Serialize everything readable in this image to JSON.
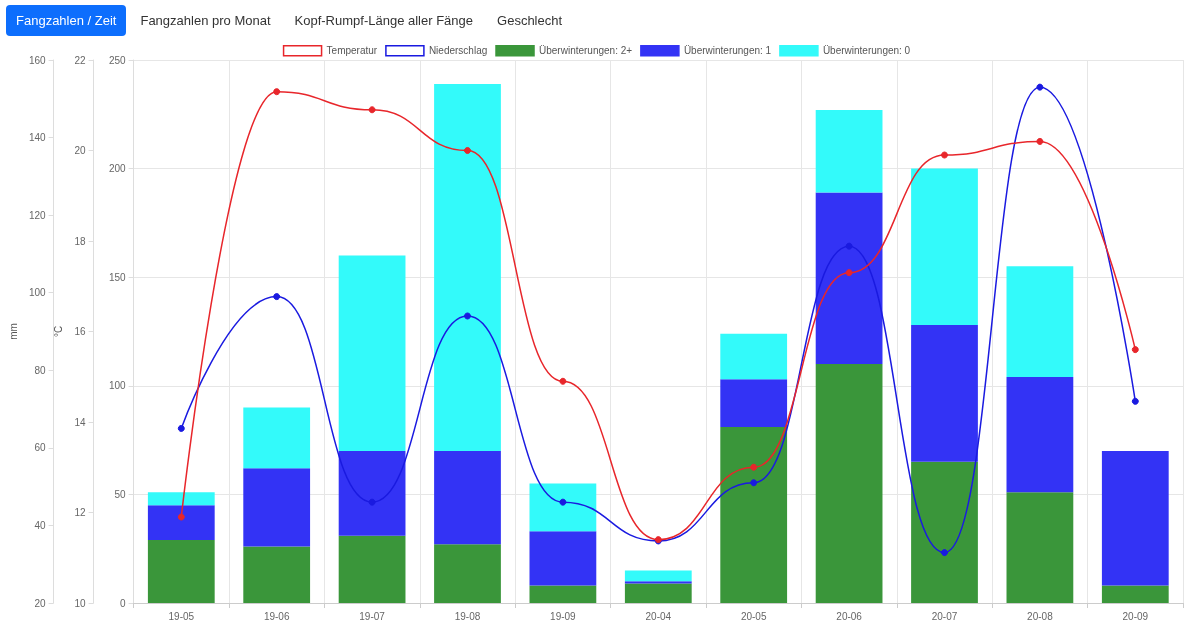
{
  "chart_data": {
    "type": "bar",
    "stacked": true,
    "categories": [
      "19-05",
      "19-06",
      "19-07",
      "19-08",
      "19-09",
      "20-04",
      "20-05",
      "20-06",
      "20-07",
      "20-08",
      "20-09"
    ],
    "series": [
      {
        "name": "Temperatur",
        "type": "line",
        "axis": "y2",
        "color": "#e8262b",
        "values": [
          11.9,
          21.3,
          20.9,
          20.0,
          14.9,
          11.4,
          13.0,
          17.3,
          19.9,
          20.2,
          15.6
        ]
      },
      {
        "name": "Niederschlag",
        "type": "line",
        "axis": "y3",
        "color": "#1a1ae0",
        "values": [
          65,
          99,
          46,
          94,
          46,
          36,
          51,
          112,
          33,
          153,
          72
        ]
      },
      {
        "name": "Überwinterungen: 2+",
        "type": "bar",
        "axis": "y",
        "color": "#3a963a",
        "values": [
          29,
          26,
          31,
          27,
          8,
          9,
          81,
          110,
          65,
          51,
          8
        ]
      },
      {
        "name": "Überwinterungen: 1",
        "type": "bar",
        "axis": "y",
        "color": "#3333f5",
        "values": [
          16,
          36,
          39,
          43,
          25,
          1,
          22,
          79,
          63,
          53,
          62
        ]
      },
      {
        "name": "Überwinterungen: 0",
        "type": "bar",
        "axis": "y",
        "color": "#33fafa",
        "values": [
          6,
          28,
          90,
          169,
          22,
          5,
          21,
          38,
          72,
          51,
          0
        ]
      }
    ],
    "ylim": [
      0,
      250
    ],
    "yticks": [
      0,
      50,
      100,
      150,
      200,
      250
    ],
    "y2lim": [
      10,
      22
    ],
    "y2ticks": [
      10,
      12,
      14,
      16,
      18,
      20,
      22
    ],
    "y2label": "°C",
    "y3lim": [
      20,
      160
    ],
    "y3ticks": [
      20,
      40,
      60,
      80,
      100,
      120,
      140,
      160
    ],
    "y3label": "mm",
    "grid": true,
    "legend": "top",
    "marker": "circle",
    "line_style": "solid",
    "annotations": [
      "Fangzahlen / Zeit",
      "Fangzahlen pro Monat",
      "Kopf-Rumpf-Länge aller Fänge",
      "Geschlecht"
    ]
  }
}
